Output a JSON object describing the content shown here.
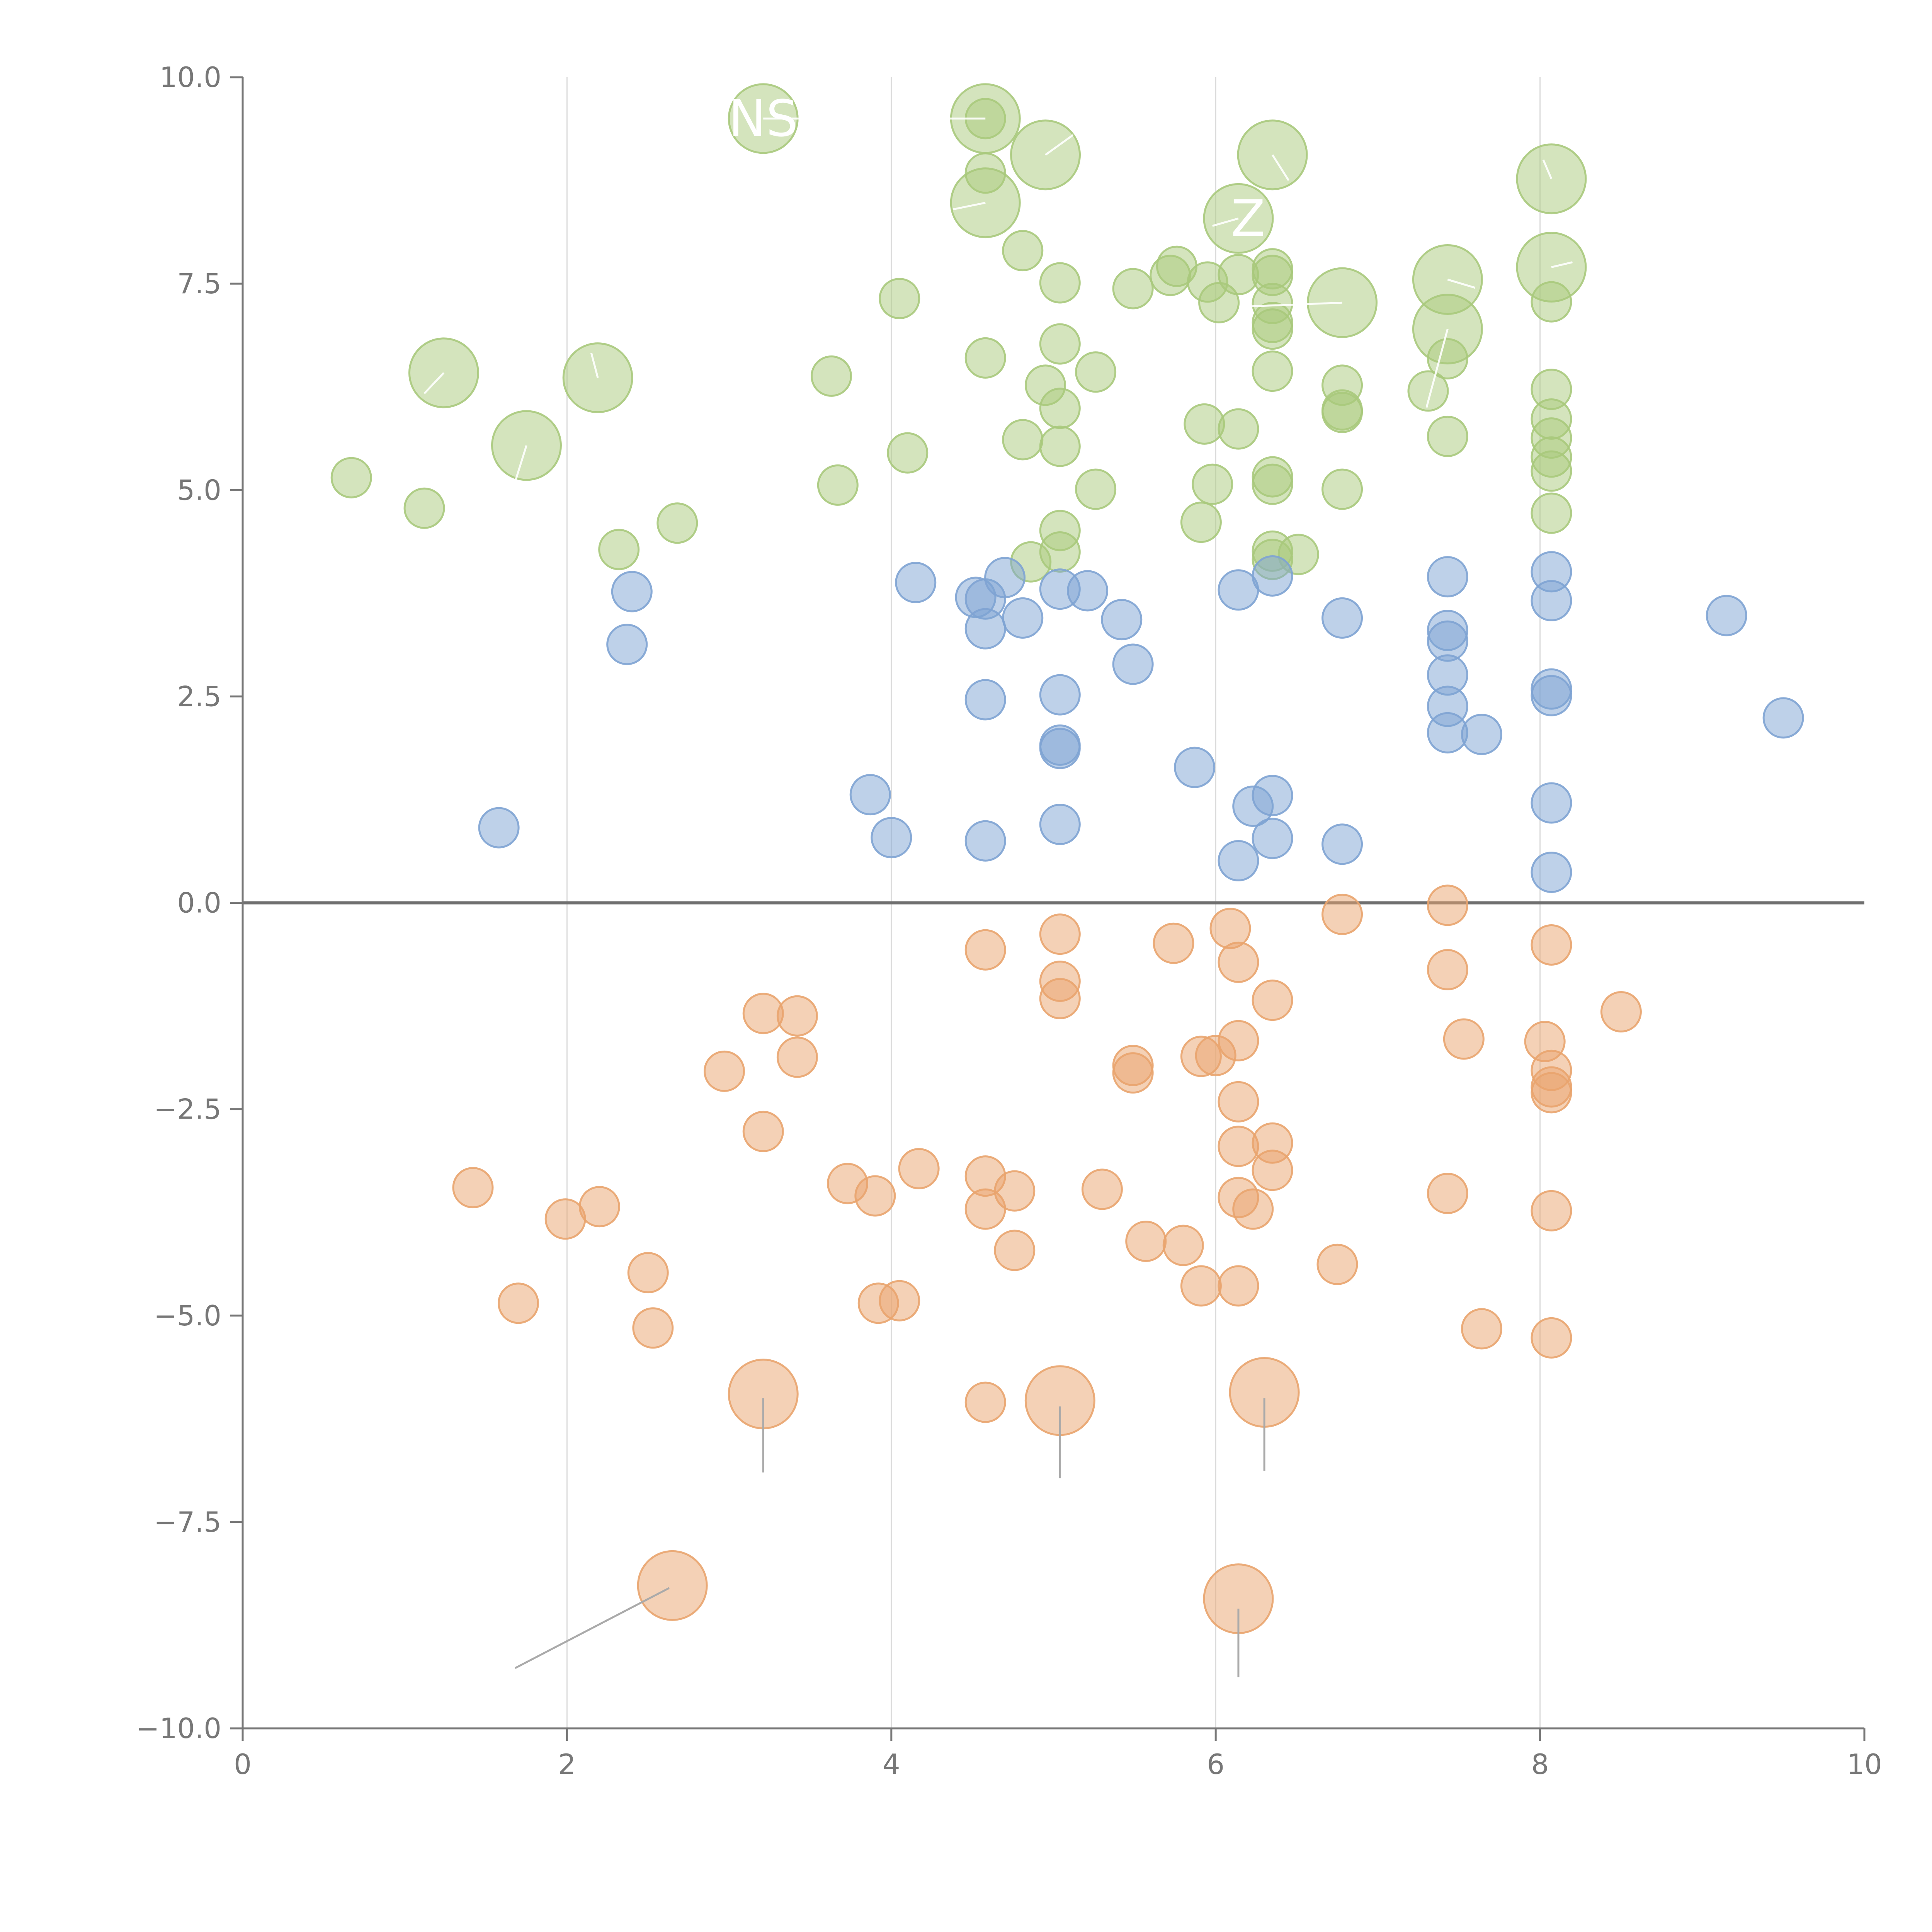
{
  "chart_data": {
    "type": "scatter",
    "title": "",
    "xlabel": "",
    "ylabel": "",
    "xlim": [
      0,
      10
    ],
    "ylim": [
      -10,
      10
    ],
    "grid": "vertical",
    "xticks": [
      0,
      2,
      4,
      6,
      8,
      10
    ],
    "xtick_labels": [
      "0",
      "2",
      "4",
      "6",
      "8",
      "10"
    ],
    "yticks": [
      -10,
      -7.5,
      -5,
      -2.5,
      0,
      2.5,
      5,
      7.5,
      10
    ],
    "ytick_labels": [
      "−10.0",
      "−7.5",
      "−5.0",
      "−2.5",
      "0.0",
      "2.5",
      "5.0",
      "7.5",
      "10.0"
    ],
    "zero_line": 0,
    "marker_opacity": 0.5,
    "series": [
      {
        "name": "green",
        "color": "#a9c97c",
        "points": [
          [
            0.67,
            5.15
          ],
          [
            1.12,
            4.78
          ],
          [
            2.32,
            4.28
          ],
          [
            2.68,
            4.6
          ],
          [
            3.63,
            6.38
          ],
          [
            3.67,
            5.06
          ],
          [
            4.05,
            7.32
          ],
          [
            4.1,
            5.45
          ],
          [
            4.58,
            9.5
          ],
          [
            4.58,
            8.84
          ],
          [
            4.58,
            6.6
          ],
          [
            4.81,
            7.9
          ],
          [
            4.81,
            5.61
          ],
          [
            4.86,
            4.13
          ],
          [
            4.95,
            6.27
          ],
          [
            5.04,
            7.51
          ],
          [
            5.04,
            6.77
          ],
          [
            5.04,
            5.99
          ],
          [
            5.04,
            5.53
          ],
          [
            5.04,
            4.51
          ],
          [
            5.04,
            4.25
          ],
          [
            5.26,
            6.43
          ],
          [
            5.26,
            5.01
          ],
          [
            5.49,
            7.44
          ],
          [
            5.72,
            7.6
          ],
          [
            5.76,
            7.71
          ],
          [
            5.91,
            4.61
          ],
          [
            5.93,
            5.8
          ],
          [
            5.95,
            7.52
          ],
          [
            5.98,
            5.07
          ],
          [
            6.02,
            7.27
          ],
          [
            6.14,
            7.61
          ],
          [
            6.14,
            5.74
          ],
          [
            6.35,
            7.68
          ],
          [
            6.35,
            7.6
          ],
          [
            6.35,
            7.26
          ],
          [
            6.35,
            7.03
          ],
          [
            6.35,
            6.95
          ],
          [
            6.35,
            6.44
          ],
          [
            6.35,
            5.16
          ],
          [
            6.35,
            5.07
          ],
          [
            6.35,
            4.26
          ],
          [
            6.35,
            4.16
          ],
          [
            6.51,
            4.22
          ],
          [
            6.78,
            6.27
          ],
          [
            6.78,
            5.97
          ],
          [
            6.78,
            5.94
          ],
          [
            6.78,
            5.01
          ],
          [
            7.31,
            6.2
          ],
          [
            7.43,
            6.59
          ],
          [
            7.43,
            5.65
          ],
          [
            8.07,
            7.28
          ],
          [
            8.07,
            6.22
          ],
          [
            8.07,
            5.86
          ],
          [
            8.07,
            5.63
          ],
          [
            8.07,
            5.4
          ],
          [
            8.07,
            5.23
          ],
          [
            8.07,
            4.72
          ]
        ],
        "big_points": [
          [
            1.24,
            6.42
          ],
          [
            1.75,
            5.54
          ],
          [
            2.19,
            6.36
          ],
          [
            3.21,
            9.5
          ],
          [
            4.58,
            9.5
          ],
          [
            4.58,
            8.48
          ],
          [
            4.95,
            9.06
          ],
          [
            6.14,
            8.29
          ],
          [
            6.35,
            9.06
          ],
          [
            6.78,
            7.27
          ],
          [
            7.43,
            7.55
          ],
          [
            7.43,
            6.95
          ],
          [
            8.07,
            8.77
          ],
          [
            8.07,
            7.7
          ]
        ],
        "labels": [
          {
            "text": "NS",
            "x": 3.21,
            "y": 9.5
          },
          {
            "text": "Z",
            "x": 6.2,
            "y": 8.29
          }
        ]
      },
      {
        "name": "blue",
        "color": "#7ea3d3",
        "points": [
          [
            1.58,
            0.91
          ],
          [
            2.37,
            3.13
          ],
          [
            2.4,
            3.77
          ],
          [
            3.87,
            1.31
          ],
          [
            4.0,
            0.79
          ],
          [
            4.15,
            3.88
          ],
          [
            4.52,
            3.7
          ],
          [
            4.58,
            3.68
          ],
          [
            4.58,
            3.32
          ],
          [
            4.58,
            2.46
          ],
          [
            4.58,
            0.75
          ],
          [
            4.7,
            3.94
          ],
          [
            4.81,
            3.45
          ],
          [
            5.04,
            3.8
          ],
          [
            5.04,
            2.52
          ],
          [
            5.04,
            1.91
          ],
          [
            5.04,
            1.87
          ],
          [
            5.04,
            0.95
          ],
          [
            5.21,
            3.78
          ],
          [
            5.42,
            3.43
          ],
          [
            5.49,
            2.89
          ],
          [
            5.87,
            1.64
          ],
          [
            6.14,
            3.79
          ],
          [
            6.14,
            0.51
          ],
          [
            6.23,
            1.17
          ],
          [
            6.35,
            3.96
          ],
          [
            6.35,
            1.3
          ],
          [
            6.35,
            0.78
          ],
          [
            6.78,
            3.45
          ],
          [
            6.78,
            0.71
          ],
          [
            7.43,
            3.95
          ],
          [
            7.43,
            3.3
          ],
          [
            7.43,
            3.17
          ],
          [
            7.43,
            2.76
          ],
          [
            7.43,
            2.38
          ],
          [
            7.43,
            2.06
          ],
          [
            7.64,
            2.04
          ],
          [
            8.07,
            4.01
          ],
          [
            8.07,
            3.66
          ],
          [
            8.07,
            2.59
          ],
          [
            8.07,
            2.51
          ],
          [
            8.07,
            1.21
          ],
          [
            8.07,
            0.37
          ],
          [
            9.15,
            3.48
          ],
          [
            9.5,
            2.24
          ]
        ],
        "big_points": [],
        "labels": []
      },
      {
        "name": "orange",
        "color": "#e9a46e",
        "points": [
          [
            1.42,
            -3.45
          ],
          [
            1.7,
            -4.85
          ],
          [
            1.99,
            -3.83
          ],
          [
            2.2,
            -3.68
          ],
          [
            2.5,
            -4.48
          ],
          [
            2.53,
            -5.15
          ],
          [
            2.97,
            -2.04
          ],
          [
            3.21,
            -1.34
          ],
          [
            3.21,
            -2.77
          ],
          [
            3.42,
            -1.37
          ],
          [
            3.42,
            -1.87
          ],
          [
            3.73,
            -3.4
          ],
          [
            3.9,
            -3.55
          ],
          [
            3.92,
            -4.85
          ],
          [
            4.05,
            -4.82
          ],
          [
            4.17,
            -3.22
          ],
          [
            4.58,
            -0.57
          ],
          [
            4.58,
            -3.31
          ],
          [
            4.58,
            -3.71
          ],
          [
            4.58,
            -6.05
          ],
          [
            4.76,
            -3.49
          ],
          [
            4.76,
            -4.21
          ],
          [
            5.04,
            -0.38
          ],
          [
            5.04,
            -0.95
          ],
          [
            5.04,
            -1.16
          ],
          [
            5.3,
            -3.47
          ],
          [
            5.49,
            -1.97
          ],
          [
            5.49,
            -2.06
          ],
          [
            5.57,
            -4.1
          ],
          [
            5.74,
            -0.49
          ],
          [
            5.8,
            -4.15
          ],
          [
            5.91,
            -1.86
          ],
          [
            5.91,
            -4.64
          ],
          [
            6.0,
            -1.85
          ],
          [
            6.09,
            -0.31
          ],
          [
            6.14,
            -0.72
          ],
          [
            6.14,
            -1.67
          ],
          [
            6.14,
            -2.41
          ],
          [
            6.14,
            -2.95
          ],
          [
            6.14,
            -3.57
          ],
          [
            6.14,
            -4.64
          ],
          [
            6.23,
            -3.71
          ],
          [
            6.35,
            -1.18
          ],
          [
            6.35,
            -2.91
          ],
          [
            6.35,
            -3.24
          ],
          [
            6.75,
            -4.38
          ],
          [
            6.78,
            -0.14
          ],
          [
            7.43,
            -0.03
          ],
          [
            7.43,
            -0.81
          ],
          [
            7.43,
            -3.52
          ],
          [
            7.53,
            -1.65
          ],
          [
            7.64,
            -5.16
          ],
          [
            8.03,
            -1.68
          ],
          [
            8.07,
            -0.51
          ],
          [
            8.07,
            -2.03
          ],
          [
            8.07,
            -2.23
          ],
          [
            8.07,
            -2.3
          ],
          [
            8.07,
            -3.73
          ],
          [
            8.07,
            -5.27
          ],
          [
            8.5,
            -1.32
          ]
        ],
        "big_points": [
          [
            3.21,
            -5.95
          ],
          [
            5.04,
            -6.03
          ],
          [
            6.3,
            -5.93
          ],
          [
            2.65,
            -8.27
          ],
          [
            6.14,
            -8.43
          ]
        ],
        "labels": []
      }
    ],
    "annotations": [
      {
        "from": [
          3.21,
          -6.0
        ],
        "to": [
          3.21,
          -6.9
        ]
      },
      {
        "from": [
          5.04,
          -6.1
        ],
        "to": [
          5.04,
          -6.97
        ]
      },
      {
        "from": [
          6.3,
          -6.0
        ],
        "to": [
          6.3,
          -6.88
        ]
      },
      {
        "from": [
          2.63,
          -8.3
        ],
        "to": [
          1.68,
          -9.27
        ]
      },
      {
        "from": [
          6.14,
          -8.55
        ],
        "to": [
          6.14,
          -9.38
        ]
      },
      {
        "from": [
          1.24,
          6.42
        ],
        "to": [
          1.12,
          6.17
        ]
      },
      {
        "from": [
          1.75,
          5.54
        ],
        "to": [
          1.68,
          5.1
        ]
      },
      {
        "from": [
          2.19,
          6.36
        ],
        "to": [
          2.15,
          6.66
        ]
      },
      {
        "from": [
          4.58,
          8.48
        ],
        "to": [
          4.38,
          8.4
        ]
      },
      {
        "from": [
          4.95,
          9.06
        ],
        "to": [
          5.12,
          9.3
        ]
      },
      {
        "from": [
          6.14,
          8.29
        ],
        "to": [
          5.98,
          8.2
        ]
      },
      {
        "from": [
          6.35,
          9.06
        ],
        "to": [
          6.45,
          8.75
        ]
      },
      {
        "from": [
          6.78,
          7.27
        ],
        "to": [
          6.15,
          7.22
        ]
      },
      {
        "from": [
          7.43,
          7.55
        ],
        "to": [
          7.6,
          7.45
        ]
      },
      {
        "from": [
          7.43,
          6.95
        ],
        "to": [
          7.3,
          6.0
        ]
      },
      {
        "from": [
          8.07,
          8.77
        ],
        "to": [
          8.02,
          9.0
        ]
      },
      {
        "from": [
          8.07,
          7.7
        ],
        "to": [
          8.2,
          7.76
        ]
      },
      {
        "from": [
          3.21,
          9.5
        ],
        "to": [
          3.78,
          9.5
        ]
      },
      {
        "from": [
          4.58,
          9.5
        ],
        "to": [
          4.22,
          9.5
        ]
      }
    ]
  }
}
